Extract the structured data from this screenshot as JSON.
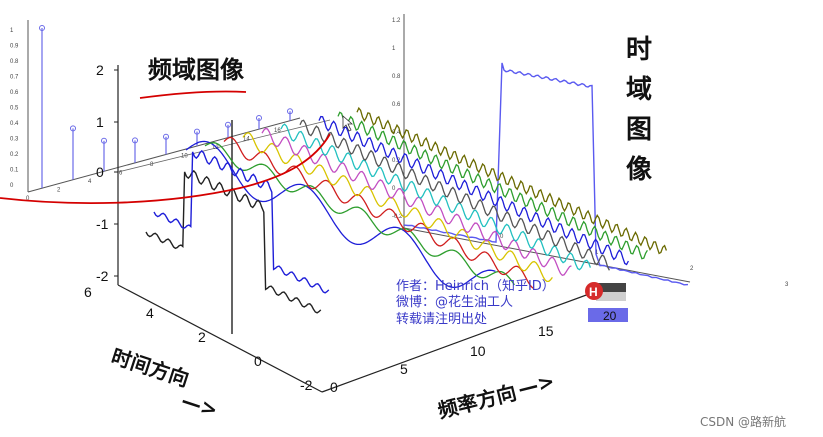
{
  "chart_data": [
    {
      "type": "line",
      "view": "3d-perspective",
      "title": "",
      "ylabel": "时间方向",
      "xlabel": "频率方向",
      "z_ticks": [
        "2",
        "1",
        "0",
        "-1",
        "-2"
      ],
      "time_ticks": [
        "6",
        "4",
        "2",
        "0",
        "-2"
      ],
      "freq_ticks": [
        "0",
        "5",
        "10",
        "15"
      ],
      "back_freq_ticks": [
        "2",
        "4",
        "6",
        "8",
        "10",
        "12",
        "14",
        "16"
      ],
      "harmonic_count": 10,
      "series_colors": [
        "#1e1ed8",
        "#2e9e2e",
        "#d01e1e",
        "#d8c400",
        "#c24ec2",
        "#22c0c0",
        "#555555",
        "#1e1ed8",
        "#2e9e2e",
        "#6a6a00"
      ],
      "approximations": [
        "#222222",
        "#1e1ed8"
      ],
      "grid": false
    },
    {
      "type": "bar",
      "title": "频域图像",
      "y_ticks": [
        "1",
        "0.9",
        "0.8",
        "0.7",
        "0.6",
        "0.5",
        "0.4",
        "0.3",
        "0.2",
        "0.1",
        "0"
      ],
      "x_ticks": [
        "0",
        "2",
        "4",
        "6",
        "8",
        "10",
        "12",
        "14",
        "16"
      ],
      "values": [
        1,
        0,
        0.32,
        0,
        0.19,
        0,
        0.14,
        0,
        0.11,
        0,
        0.09,
        0,
        0.08,
        0,
        0.07,
        0,
        0.06
      ]
    },
    {
      "type": "line",
      "title": "时域图像",
      "y_ticks": [
        "1.2",
        "1",
        "0.8",
        "0.6",
        "0.4",
        "0.2",
        "0",
        "-0.2"
      ],
      "x_ticks": [
        "0",
        "1",
        "2",
        "3"
      ],
      "x": [
        0,
        0.18,
        0.2,
        1.0,
        1.02,
        1.3,
        3.0
      ],
      "y": [
        0.02,
        0.02,
        1.06,
        1.06,
        0.02,
        0.02,
        -0.2
      ]
    }
  ],
  "annotations": {
    "freq_label": "频域图像",
    "time_label_chars": [
      "时",
      "域",
      "图",
      "像"
    ],
    "time_direction": "时间方向",
    "freq_direction": "频率方向",
    "arrow_text": "—>",
    "credit_lines": [
      "作者：Heinrich（知乎ID）",
      "微博：@花生油工人",
      "转载请注明出处"
    ],
    "logo_letter": "H",
    "logo_number": "20",
    "watermark": "CSDN @路新航"
  },
  "colors": {
    "axis": "#222222",
    "annotation_red": "#d40000",
    "credit_blue": "#3a3ac8",
    "stem_blue": "#6a6ae8",
    "time_line_blue": "#5a5af0"
  }
}
